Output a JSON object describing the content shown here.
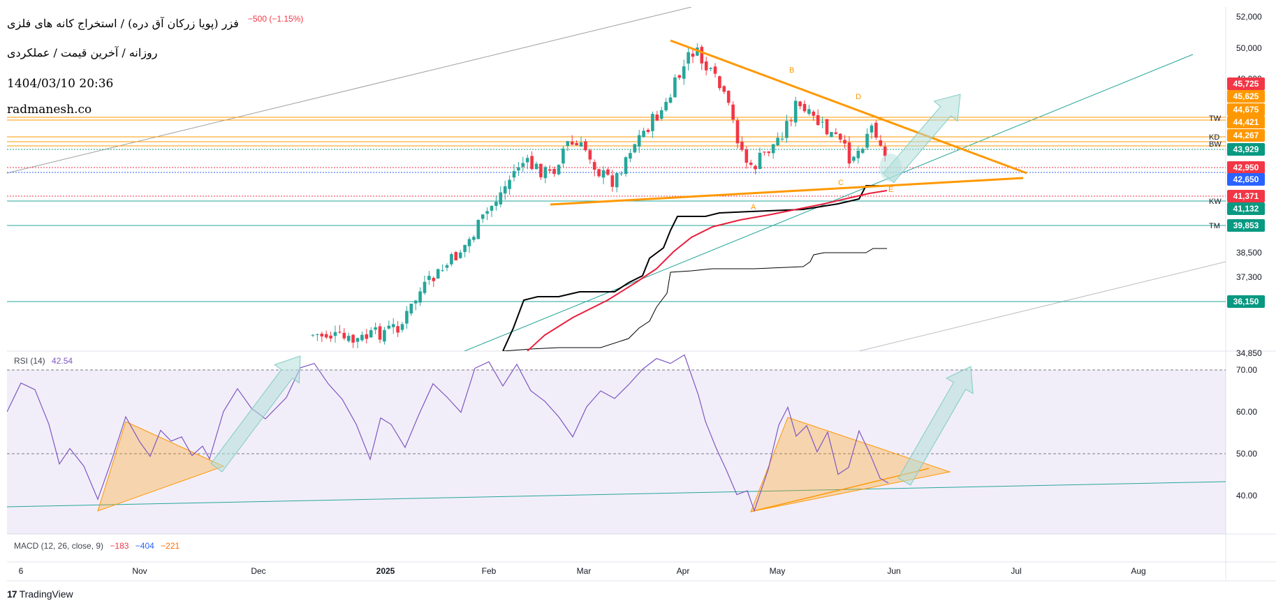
{
  "header": {
    "title": "فزر (پویا زرکان آق دره) / استخراج کانه های فلزی",
    "change": "−500 (−1.15%)",
    "subtitle": "روزانه / آخرین قیمت / عملکردی",
    "datetime": "1404/03/10 20:36",
    "site": "radmanesh.co"
  },
  "indicators": {
    "rsi_label": "RSI (14)",
    "rsi_value": "42.54",
    "macd_label": "MACD (12, 26, close, 9)",
    "macd_hist": "−183",
    "macd_line": "−404",
    "macd_signal": "−221"
  },
  "brand": {
    "name": "TradingView"
  },
  "colors": {
    "up": "#26a69a",
    "down": "#f23645",
    "orange": "#ff9800",
    "rsi": "#7e57c2",
    "ichimoku_black": "#000000",
    "ma_red": "#e91e3c"
  },
  "chart_data": [
    {
      "type": "candlestick",
      "title": "",
      "x_ticks": [
        "6",
        "Nov",
        "Dec",
        "2025",
        "Feb",
        "Mar",
        "Apr",
        "May",
        "Jun",
        "Jul",
        "Aug"
      ],
      "y_ticks": [
        34850,
        37300,
        38500,
        41132,
        42650,
        44421,
        45625,
        48000,
        50000,
        52000
      ],
      "ylim": [
        33800,
        52400
      ],
      "price_labels": [
        {
          "value": 45725,
          "label": "45,725",
          "color": "#f23645"
        },
        {
          "value": 45625,
          "label": "45,625",
          "color": "#ff9800"
        },
        {
          "value": 44675,
          "label": "44,675",
          "color": "#ff9800"
        },
        {
          "value": 44421,
          "label": "44,421",
          "color": "#ff9800"
        },
        {
          "value": 44267,
          "label": "44,267",
          "color": "#ff9800"
        },
        {
          "value": 43929,
          "label": "43,929",
          "color": "#089981"
        },
        {
          "value": 42950,
          "label": "42,950",
          "color": "#f23645"
        },
        {
          "value": 42650,
          "label": "42,650",
          "color": "#2962ff"
        },
        {
          "value": 41371,
          "label": "41,371",
          "color": "#f23645"
        },
        {
          "value": 41132,
          "label": "41,132",
          "color": "#089981"
        },
        {
          "value": 39853,
          "label": "39,853",
          "color": "#089981"
        },
        {
          "value": 36150,
          "label": "36,150",
          "color": "#089981"
        }
      ],
      "level_tags": [
        {
          "value": 44750,
          "label": "TW"
        },
        {
          "value": 44050,
          "label": "KD"
        },
        {
          "value": 43850,
          "label": "BW"
        },
        {
          "value": 41371,
          "label": "KW"
        },
        {
          "value": 39853,
          "label": "TM"
        }
      ],
      "wave_labels": [
        "A",
        "B",
        "C",
        "D",
        "E"
      ]
    },
    {
      "type": "line",
      "title": "RSI (14)",
      "y_ticks": [
        40,
        50,
        60,
        70
      ],
      "ylim": [
        31,
        75
      ],
      "band": [
        30,
        70
      ],
      "midline": 50
    }
  ]
}
